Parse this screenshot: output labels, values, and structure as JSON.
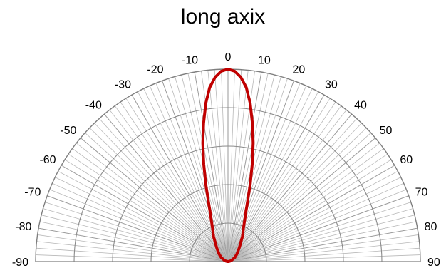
{
  "chart_data": {
    "type": "line",
    "subtype": "polar-half",
    "title": "long axix",
    "angle_ticks": [
      -90,
      -80,
      -70,
      -60,
      -50,
      -40,
      -30,
      -20,
      -10,
      0,
      10,
      20,
      30,
      40,
      50,
      60,
      70,
      80,
      90
    ],
    "angle_range": [
      -90,
      90
    ],
    "radial_range": [
      0,
      1
    ],
    "radial_rings": [
      0.2,
      0.4,
      0.6,
      0.8,
      1.0
    ],
    "spoke_step_degrees": 2,
    "grid": true,
    "series": [
      {
        "color": "#c00000",
        "angles": [
          -90,
          -80,
          -70,
          -60,
          -50,
          -40,
          -30,
          -25,
          -20,
          -18,
          -16,
          -14,
          -12,
          -10,
          -8,
          -6,
          -4,
          -2,
          0,
          2,
          4,
          6,
          8,
          10,
          12,
          14,
          16,
          18,
          20,
          25,
          30,
          40,
          50,
          60,
          70,
          80,
          90
        ],
        "values": [
          0.0,
          0.01,
          0.02,
          0.04,
          0.06,
          0.09,
          0.15,
          0.19,
          0.27,
          0.33,
          0.42,
          0.52,
          0.63,
          0.73,
          0.83,
          0.91,
          0.96,
          0.99,
          1.0,
          0.99,
          0.96,
          0.91,
          0.83,
          0.73,
          0.63,
          0.52,
          0.42,
          0.33,
          0.27,
          0.19,
          0.15,
          0.09,
          0.06,
          0.04,
          0.02,
          0.01,
          0.0
        ]
      }
    ]
  }
}
